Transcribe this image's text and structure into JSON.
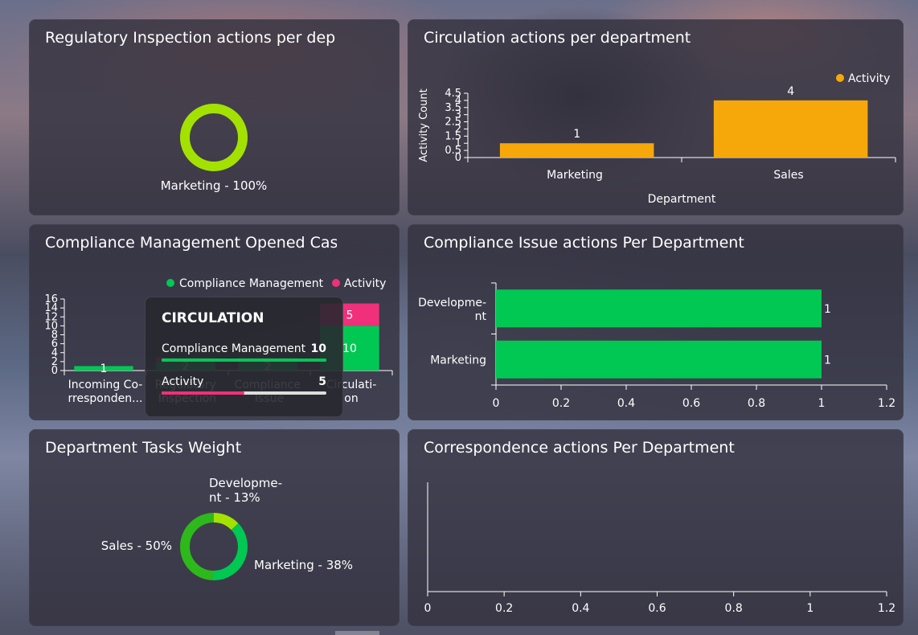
{
  "colors": {
    "orange": "#f6a80a",
    "green": "#00c853",
    "pink": "#f0307a",
    "lime": "#a3e200"
  },
  "panels": {
    "regulatory": {
      "title": "Regulatory Inspection actions per department",
      "chart_data": {
        "type": "pie",
        "slices": [
          {
            "label": "Marketing - 100%",
            "value": 100,
            "color": "#a3e200"
          }
        ]
      }
    },
    "circulation": {
      "title": "Circulation actions per department",
      "chart_data": {
        "type": "bar",
        "categories": [
          "Marketing",
          "Sales"
        ],
        "series": [
          {
            "name": "Activity",
            "values": [
              1,
              4
            ],
            "color": "#f6a80a"
          }
        ],
        "data_labels": [
          "1",
          "4"
        ],
        "xlabel": "Department",
        "ylabel": "Activity Count",
        "ylim": [
          0,
          4.5
        ],
        "yticks": [
          "0",
          "0.5",
          "1",
          "1.5",
          "2",
          "2.5",
          "3",
          "3.5",
          "4",
          "4.5"
        ],
        "legend": "top-right"
      }
    },
    "compliance_mgmt": {
      "title": "Compliance Management Opened Cases",
      "chart_data": {
        "type": "bar",
        "stacked": true,
        "categories": [
          "Incoming Co-rresponden...",
          "Regulatory Inspection",
          "Compliance Issue",
          "Circulati-on"
        ],
        "series": [
          {
            "name": "Compliance Management",
            "values": [
              1,
              2,
              2,
              10
            ],
            "color": "#00c853"
          },
          {
            "name": "Activity",
            "values": [
              0,
              1,
              1,
              5
            ],
            "color": "#f0307a"
          }
        ],
        "data_labels": [
          "1",
          "2",
          "2",
          "10",
          "5"
        ],
        "ylim": [
          0,
          16
        ],
        "yticks": [
          "0",
          "2",
          "4",
          "6",
          "8",
          "10",
          "12",
          "14",
          "16"
        ],
        "legend": "top-right"
      },
      "tooltip": {
        "title": "CIRCULATION",
        "rows": [
          {
            "label": "Compliance Management",
            "value": "10",
            "fraction": 1.0,
            "color": "#00c853"
          },
          {
            "label": "Activity",
            "value": "5",
            "fraction": 0.5,
            "color": "#f0307a"
          }
        ]
      }
    },
    "compliance_issue": {
      "title": "Compliance Issue actions Per Department",
      "chart_data": {
        "type": "bar",
        "orientation": "horizontal",
        "categories": [
          "Developme-nt",
          "Marketing"
        ],
        "series": [
          {
            "name": "Compliance Issue",
            "values": [
              1,
              1
            ],
            "color": "#00c853"
          }
        ],
        "data_labels": [
          "1",
          "1"
        ],
        "xlim": [
          0,
          1.2
        ],
        "xticks": [
          "0",
          "0.2",
          "0.4",
          "0.6",
          "0.8",
          "1",
          "1.2"
        ]
      }
    },
    "tasks_weight": {
      "title": "Department Tasks Weight",
      "chart_data": {
        "type": "pie",
        "slices": [
          {
            "label": "Developme-nt - 13%",
            "value": 13,
            "color": "#a3e200"
          },
          {
            "label": "Marketing - 38%",
            "value": 38,
            "color": "#00c853"
          },
          {
            "label": "Sales - 50%",
            "value": 50,
            "color": "#2db81c"
          }
        ]
      }
    },
    "correspondence": {
      "title": "Correspondence actions Per Department",
      "chart_data": {
        "type": "bar",
        "orientation": "horizontal",
        "categories": [],
        "series": [],
        "xlim": [
          0,
          1.2
        ],
        "xticks": [
          "0",
          "0.2",
          "0.4",
          "0.6",
          "0.8",
          "1",
          "1.2"
        ]
      }
    }
  }
}
